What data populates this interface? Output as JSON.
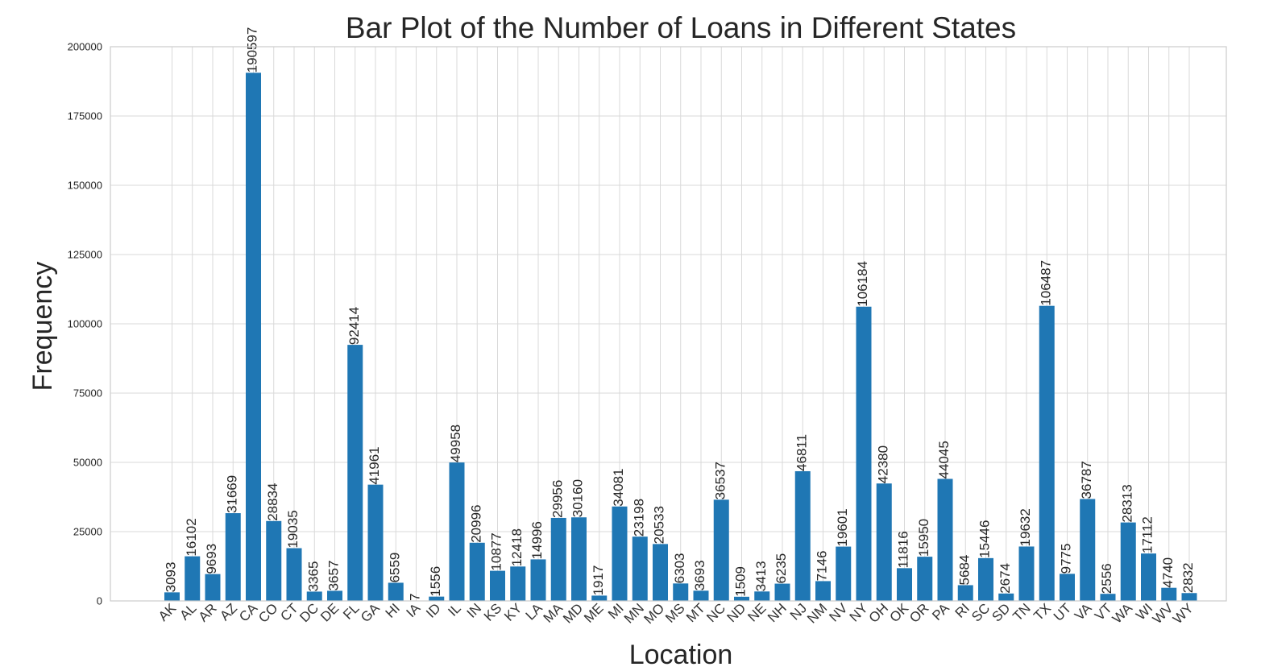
{
  "chart_data": {
    "type": "bar",
    "title": "Bar Plot of the Number of Loans in Different States",
    "xlabel": "Location",
    "ylabel": "Frequency",
    "ylim": [
      0,
      200000
    ],
    "yticks": [
      0,
      25000,
      50000,
      75000,
      100000,
      125000,
      150000,
      175000,
      200000
    ],
    "grid": true,
    "bar_color": "#1f77b4",
    "categories": [
      "AK",
      "AL",
      "AR",
      "AZ",
      "CA",
      "CO",
      "CT",
      "DC",
      "DE",
      "FL",
      "GA",
      "HI",
      "IA",
      "ID",
      "IL",
      "IN",
      "KS",
      "KY",
      "LA",
      "MA",
      "MD",
      "ME",
      "MI",
      "MN",
      "MO",
      "MS",
      "MT",
      "NC",
      "ND",
      "NE",
      "NH",
      "NJ",
      "NM",
      "NV",
      "NY",
      "OH",
      "OK",
      "OR",
      "PA",
      "RI",
      "SC",
      "SD",
      "TN",
      "TX",
      "UT",
      "VA",
      "VT",
      "WA",
      "WI",
      "WV",
      "WY"
    ],
    "values": [
      3093,
      16102,
      9693,
      31669,
      190597,
      28834,
      19035,
      3365,
      3657,
      92414,
      41961,
      6559,
      7,
      1556,
      49958,
      20996,
      10877,
      12418,
      14996,
      29956,
      30160,
      1917,
      34081,
      23198,
      20533,
      6303,
      3693,
      36537,
      1509,
      3413,
      6235,
      46811,
      7146,
      19601,
      106184,
      42380,
      11816,
      15950,
      44045,
      5684,
      15446,
      2674,
      19632,
      106487,
      9775,
      36787,
      2556,
      28313,
      17112,
      4740,
      2832
    ]
  }
}
